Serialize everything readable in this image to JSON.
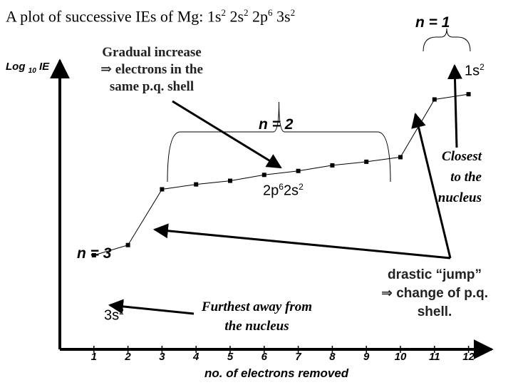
{
  "title": {
    "prefix": "A plot of successive IEs of Mg: 1s",
    "sup1": "2",
    "mid1": " 2s",
    "sup2": "2",
    "mid2": " 2p",
    "sup3": "6",
    "mid3": " 3s",
    "sup4": "2"
  },
  "axis": {
    "ylabel_main": "Log ",
    "ylabel_sub": "10",
    "ylabel_end": " IE",
    "xlabel": "no. of electrons removed"
  },
  "annotations": {
    "n1": "n = 1",
    "n2": "n = 2",
    "n3": "n = 3",
    "gradual_1": "Gradual increase",
    "gradual_2": "⇒ electrons in the",
    "gradual_3": "same p.q. shell",
    "ones": "1s",
    "ones_sup": "2",
    "twop": "2p",
    "twop_sup": "6",
    "twos": "2s",
    "twos_sup": "2",
    "threes": "3s",
    "threes_sup": "2",
    "closest_1": "Closest",
    "closest_2": "to the",
    "closest_3": "nucleus",
    "furthest_1": "Furthest away from",
    "furthest_2": "the nucleus",
    "jump_1": "drastic “jump”",
    "jump_2": "⇒ change of p.q.",
    "jump_3": "shell."
  },
  "chart_data": {
    "type": "line",
    "x": [
      1,
      2,
      3,
      4,
      5,
      6,
      7,
      8,
      9,
      10,
      11,
      12
    ],
    "xticks": [
      "1",
      "2",
      "3",
      "4",
      "5",
      "6",
      "7",
      "8",
      "9",
      "10",
      "11",
      "12"
    ],
    "series": [
      {
        "values": [
          2.87,
          3.18,
          4.88,
          5.03,
          5.14,
          5.32,
          5.44,
          5.61,
          5.72,
          5.86,
          7.62,
          7.78
        ]
      }
    ],
    "xlabel": "no. of electrons removed",
    "ylabel": "Log 10 IE",
    "xlim": [
      0,
      12.6
    ],
    "ylim": [
      0,
      8.7
    ],
    "grid": false
  }
}
